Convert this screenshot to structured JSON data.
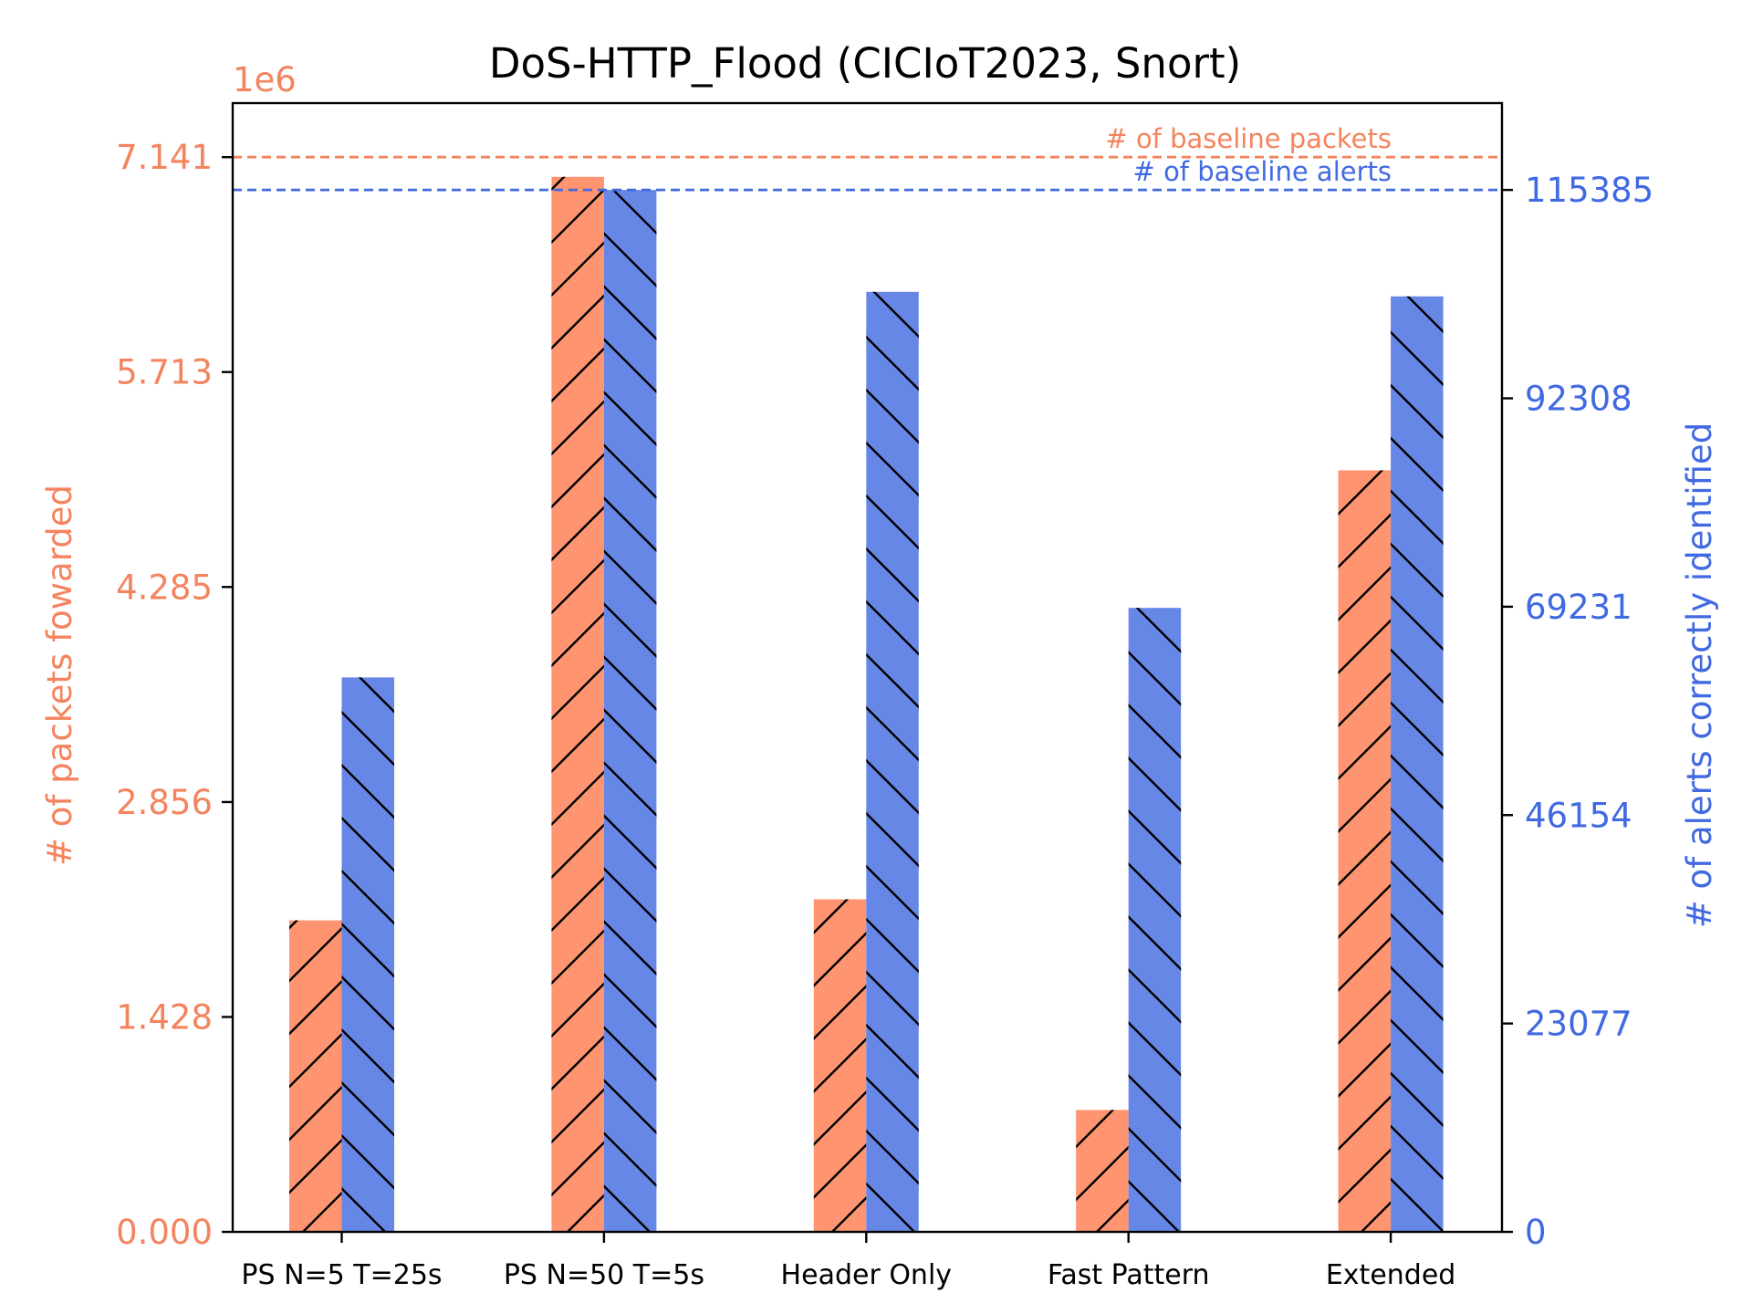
{
  "chart_data": {
    "type": "bar",
    "title": "DoS-HTTP_Flood (CICIoT2023, Snort)",
    "categories": [
      "PS N=5 T=25s",
      "PS N=50 T=5s",
      "Header Only",
      "Fast Pattern",
      "Extended"
    ],
    "left_axis": {
      "label": "# of packets fowarded",
      "multiplier_label": "1e6",
      "ylim": [
        0,
        7.5
      ],
      "ticks": [
        "0.000",
        "1.428",
        "2.856",
        "4.285",
        "5.713",
        "7.141"
      ],
      "tick_values": [
        0,
        1.428,
        2.856,
        4.285,
        5.713,
        7.141
      ],
      "color": "#f4845f"
    },
    "right_axis": {
      "label": "# of alerts correctly identified",
      "ylim": [
        0,
        125000
      ],
      "ticks": [
        "0",
        "23077",
        "46154",
        "69231",
        "92308",
        "115385"
      ],
      "tick_values": [
        0,
        23077,
        46154,
        69231,
        92308,
        115385
      ],
      "color": "#4169e1"
    },
    "series": [
      {
        "name": "packets",
        "axis": "left",
        "unit_scale": "1e6",
        "values": [
          2.07,
          7.01,
          2.21,
          0.81,
          5.06
        ],
        "color": "#fe9470",
        "hatch": "forward-slash"
      },
      {
        "name": "alerts",
        "axis": "right",
        "values": [
          61400,
          115385,
          104100,
          69100,
          103600
        ],
        "color": "#6787e6",
        "hatch": "back-slash"
      }
    ],
    "reference_lines": [
      {
        "label": "# of baseline packets",
        "axis": "left",
        "value": 7.141,
        "color": "#f4845f",
        "style": "dashed"
      },
      {
        "label": "# of baseline alerts",
        "axis": "right",
        "value": 115385,
        "color": "#4169e1",
        "style": "dashed"
      }
    ],
    "grid": false
  }
}
